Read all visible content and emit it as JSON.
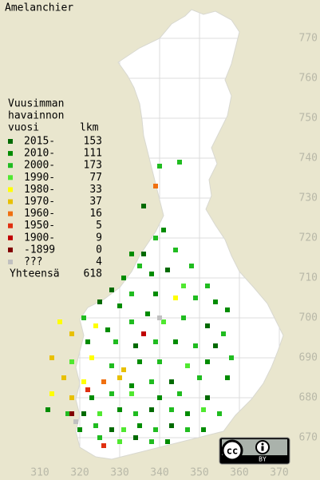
{
  "title": "Amelanchier",
  "legend": {
    "heading": [
      "Vuusimman",
      "havainnon",
      "vuosi"
    ],
    "count_heading": "lkm",
    "entries": [
      {
        "label": "2015-",
        "count": 153,
        "color": "#006a00"
      },
      {
        "label": "2010-",
        "count": 111,
        "color": "#008c00"
      },
      {
        "label": "2000-",
        "count": 173,
        "color": "#20bc20"
      },
      {
        "label": "1990-",
        "count": 77,
        "color": "#50e830"
      },
      {
        "label": "1980-",
        "count": 33,
        "color": "#ffff00"
      },
      {
        "label": "1970-",
        "count": 37,
        "color": "#e8c000"
      },
      {
        "label": "1960-",
        "count": 16,
        "color": "#f07010"
      },
      {
        "label": "1950-",
        "count": 5,
        "color": "#e03010"
      },
      {
        "label": "1900-",
        "count": 9,
        "color": "#c00000"
      },
      {
        "label": "-1899",
        "count": 0,
        "color": "#800000"
      },
      {
        "label": "???",
        "count": 4,
        "color": "#c0c0c0"
      }
    ],
    "total_label": "Yhteensä",
    "total": 618
  },
  "xticks": [
    310,
    320,
    330,
    340,
    350,
    360,
    370
  ],
  "yticks": [
    770,
    760,
    750,
    740,
    730,
    720,
    710,
    700,
    690,
    680,
    670
  ],
  "xlim": [
    300,
    380
  ],
  "ylim": [
    660,
    780
  ],
  "squares": [
    [
      340,
      738,
      2
    ],
    [
      345,
      739,
      2
    ],
    [
      339,
      733,
      6
    ],
    [
      336,
      728,
      0
    ],
    [
      341,
      722,
      1
    ],
    [
      339,
      720,
      2
    ],
    [
      344,
      717,
      2
    ],
    [
      336,
      716,
      0
    ],
    [
      335,
      713,
      2
    ],
    [
      333,
      716,
      1
    ],
    [
      338,
      711,
      1
    ],
    [
      342,
      712,
      0
    ],
    [
      348,
      713,
      2
    ],
    [
      346,
      708,
      3
    ],
    [
      352,
      708,
      2
    ],
    [
      331,
      710,
      1
    ],
    [
      328,
      707,
      0
    ],
    [
      333,
      706,
      2
    ],
    [
      339,
      706,
      1
    ],
    [
      344,
      705,
      4
    ],
    [
      349,
      705,
      2
    ],
    [
      354,
      704,
      1
    ],
    [
      325,
      704,
      0
    ],
    [
      330,
      703,
      1
    ],
    [
      321,
      700,
      2
    ],
    [
      324,
      698,
      4
    ],
    [
      327,
      697,
      1
    ],
    [
      333,
      699,
      2
    ],
    [
      337,
      701,
      1
    ],
    [
      341,
      699,
      3
    ],
    [
      346,
      700,
      2
    ],
    [
      352,
      698,
      0
    ],
    [
      357,
      702,
      1
    ],
    [
      315,
      699,
      4
    ],
    [
      318,
      696,
      5
    ],
    [
      322,
      694,
      1
    ],
    [
      329,
      694,
      2
    ],
    [
      334,
      693,
      0
    ],
    [
      339,
      694,
      2
    ],
    [
      344,
      694,
      1
    ],
    [
      349,
      693,
      2
    ],
    [
      354,
      693,
      0
    ],
    [
      356,
      696,
      2
    ],
    [
      313,
      690,
      5
    ],
    [
      318,
      689,
      3
    ],
    [
      323,
      690,
      4
    ],
    [
      328,
      688,
      2
    ],
    [
      331,
      687,
      5
    ],
    [
      335,
      689,
      1
    ],
    [
      340,
      689,
      2
    ],
    [
      347,
      688,
      3
    ],
    [
      352,
      689,
      1
    ],
    [
      358,
      690,
      2
    ],
    [
      316,
      685,
      5
    ],
    [
      321,
      684,
      4
    ],
    [
      326,
      684,
      6
    ],
    [
      330,
      685,
      5
    ],
    [
      333,
      683,
      1
    ],
    [
      338,
      684,
      2
    ],
    [
      343,
      684,
      0
    ],
    [
      350,
      685,
      2
    ],
    [
      357,
      685,
      1
    ],
    [
      313,
      681,
      4
    ],
    [
      318,
      680,
      5
    ],
    [
      323,
      680,
      1
    ],
    [
      328,
      681,
      2
    ],
    [
      333,
      681,
      3
    ],
    [
      340,
      680,
      1
    ],
    [
      345,
      681,
      2
    ],
    [
      352,
      680,
      0
    ],
    [
      312,
      677,
      1
    ],
    [
      317,
      676,
      2
    ],
    [
      321,
      676,
      0
    ],
    [
      325,
      676,
      3
    ],
    [
      330,
      677,
      1
    ],
    [
      334,
      676,
      2
    ],
    [
      338,
      677,
      0
    ],
    [
      343,
      677,
      2
    ],
    [
      347,
      676,
      1
    ],
    [
      351,
      677,
      3
    ],
    [
      355,
      676,
      2
    ],
    [
      320,
      672,
      1
    ],
    [
      324,
      673,
      2
    ],
    [
      328,
      672,
      0
    ],
    [
      331,
      672,
      3
    ],
    [
      335,
      673,
      1
    ],
    [
      339,
      672,
      2
    ],
    [
      343,
      673,
      0
    ],
    [
      347,
      672,
      2
    ],
    [
      351,
      672,
      1
    ],
    [
      325,
      670,
      2
    ],
    [
      330,
      669,
      3
    ],
    [
      334,
      670,
      0
    ],
    [
      338,
      669,
      2
    ],
    [
      342,
      669,
      1
    ],
    [
      326,
      668,
      7
    ],
    [
      319,
      674,
      10
    ],
    [
      340,
      700,
      10
    ],
    [
      336,
      696,
      8
    ],
    [
      318,
      676,
      9
    ],
    [
      322,
      682,
      7
    ]
  ],
  "license": {
    "icon": "cc",
    "label": "BY"
  }
}
